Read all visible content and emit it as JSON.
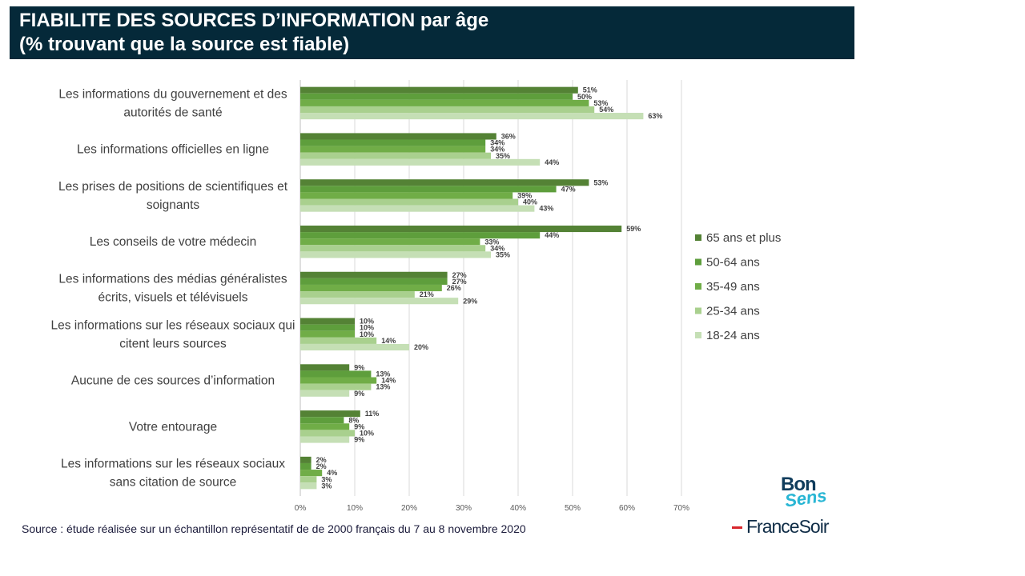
{
  "header": {
    "title_line1": "FIABILITE DES SOURCES D’INFORMATION par âge",
    "title_line2": "(% trouvant que la source est fiable)"
  },
  "footer": {
    "source": "Source : étude réalisée sur un échantillon représentatif de de 2000 français du 7 au 8 novembre 2020"
  },
  "logos": {
    "bon": "Bon",
    "sens": "Sens",
    "francesoir": "FranceSoir"
  },
  "chart_data": {
    "type": "bar",
    "orientation": "horizontal",
    "categories": [
      [
        "Les informations du gouvernement et des",
        "autorités de santé"
      ],
      [
        "Les informations officielles en ligne"
      ],
      [
        "Les prises de positions de scientifiques et",
        "soignants"
      ],
      [
        "Les conseils de votre médecin"
      ],
      [
        "Les informations des médias généralistes",
        "écrits, visuels et télévisuels"
      ],
      [
        "Les informations sur les réseaux sociaux qui",
        "citent leurs sources"
      ],
      [
        "Aucune de ces sources d’information"
      ],
      [
        "Votre entourage"
      ],
      [
        "Les informations sur les réseaux sociaux",
        "sans citation de source"
      ]
    ],
    "series": [
      {
        "name": "65 ans et plus",
        "color": "#548235",
        "values": [
          51,
          36,
          53,
          59,
          27,
          10,
          9,
          11,
          2
        ]
      },
      {
        "name": "50-64 ans",
        "color": "#5e9e3c",
        "values": [
          50,
          34,
          47,
          44,
          27,
          10,
          13,
          8,
          2
        ]
      },
      {
        "name": "35-49 ans",
        "color": "#70ad47",
        "values": [
          53,
          34,
          39,
          33,
          26,
          10,
          14,
          9,
          4
        ]
      },
      {
        "name": "25-34 ans",
        "color": "#a9d08e",
        "values": [
          54,
          35,
          40,
          34,
          21,
          14,
          13,
          10,
          3
        ]
      },
      {
        "name": "18-24 ans",
        "color": "#c5dfb5",
        "values": [
          63,
          44,
          43,
          35,
          29,
          20,
          9,
          9,
          3
        ]
      }
    ],
    "xticks": [
      "0%",
      "10%",
      "20%",
      "30%",
      "40%",
      "50%",
      "60%",
      "70%"
    ],
    "xlim": [
      0,
      70
    ],
    "value_suffix": "%",
    "grid": true,
    "legend_position": "right"
  }
}
